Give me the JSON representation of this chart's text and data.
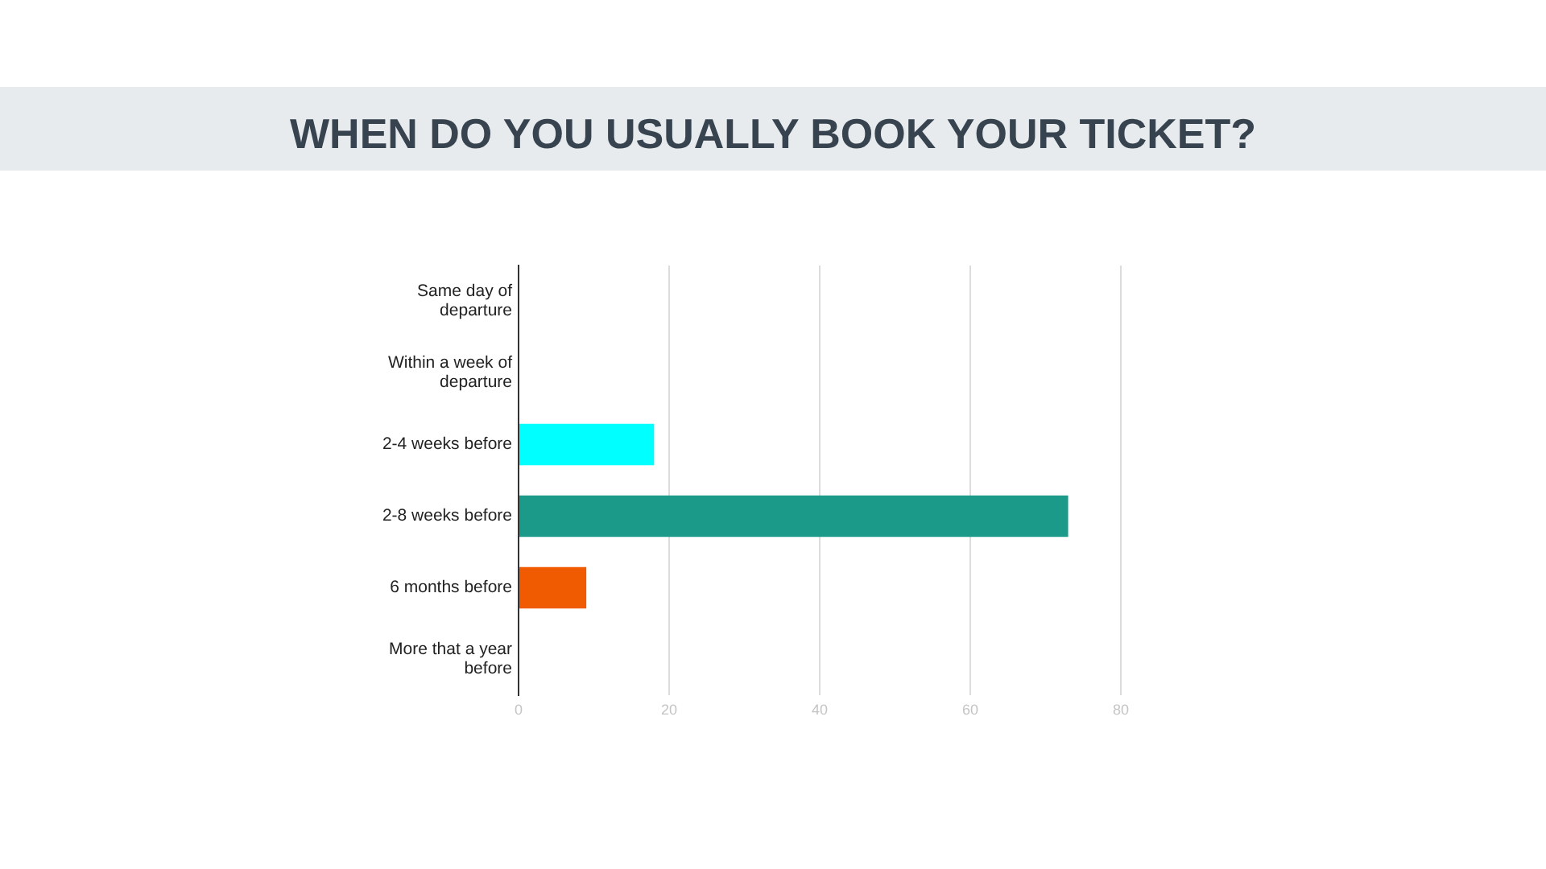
{
  "chart_data": {
    "type": "bar",
    "orientation": "horizontal",
    "title": "WHEN DO YOU USUALLY BOOK YOUR TICKET?",
    "categories": [
      "Same day of departure",
      "Within a week of departure",
      "2-4 weeks before",
      "2-8 weeks before",
      "6 months before",
      "More that a year before"
    ],
    "values": [
      0,
      0,
      18,
      73,
      9,
      0
    ],
    "colors": [
      null,
      null,
      "#00ffff",
      "#1b9a89",
      "#f05a00",
      null
    ],
    "xlim": [
      0,
      80
    ],
    "xticks": [
      0,
      20,
      40,
      60,
      80
    ],
    "grid": "x"
  }
}
